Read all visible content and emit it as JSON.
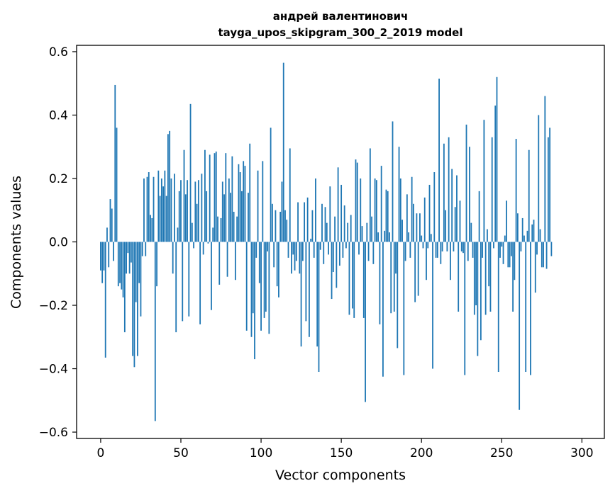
{
  "chart_data": {
    "type": "bar",
    "title": "андрей валентинович",
    "subtitle": "tayga_upos_skipgram_300_2_2019 model",
    "xlabel": "Vector components",
    "ylabel": "Components values",
    "xlim": [
      -15,
      314
    ],
    "ylim": [
      -0.62,
      0.62
    ],
    "xticks": [
      0,
      50,
      100,
      150,
      200,
      250,
      300
    ],
    "xtick_labels": [
      "0",
      "50",
      "100",
      "150",
      "200",
      "250",
      "300"
    ],
    "yticks": [
      -0.6,
      -0.4,
      -0.2,
      0.0,
      0.2,
      0.4,
      0.6
    ],
    "ytick_labels": [
      "−0.6",
      "−0.4",
      "−0.2",
      "0.0",
      "0.2",
      "0.4",
      "0.6"
    ],
    "grid": false,
    "bar_color": "#1f77b4",
    "values": [
      -0.09,
      -0.13,
      -0.09,
      -0.365,
      0.045,
      -0.08,
      0.135,
      0.105,
      -0.06,
      0.495,
      0.36,
      -0.14,
      -0.13,
      -0.15,
      -0.175,
      -0.285,
      -0.1,
      -0.035,
      -0.1,
      -0.065,
      -0.36,
      -0.395,
      -0.19,
      -0.36,
      -0.13,
      -0.235,
      -0.045,
      0.2,
      -0.045,
      0.205,
      0.22,
      0.085,
      0.075,
      0.205,
      -0.565,
      -0.14,
      0.225,
      0.145,
      0.2,
      0.175,
      0.225,
      0.145,
      0.34,
      0.35,
      0.2,
      -0.1,
      0.215,
      -0.285,
      0.045,
      0.16,
      0.195,
      -0.25,
      0.29,
      0.15,
      0.195,
      -0.235,
      0.435,
      0.06,
      -0.02,
      0.19,
      0.12,
      0.195,
      -0.26,
      0.215,
      -0.04,
      0.29,
      0.16,
      -0.005,
      0.275,
      -0.215,
      0.045,
      0.28,
      0.285,
      0.08,
      -0.135,
      0.075,
      0.19,
      0.15,
      0.28,
      -0.11,
      0.2,
      0.155,
      0.27,
      0.095,
      -0.12,
      0.08,
      0.245,
      0.22,
      0.16,
      0.255,
      0.24,
      -0.28,
      0.155,
      0.31,
      -0.3,
      -0.225,
      -0.37,
      -0.05,
      0.225,
      -0.13,
      -0.28,
      0.255,
      -0.24,
      -0.22,
      -0.03,
      -0.29,
      0.36,
      0.12,
      -0.08,
      0.1,
      -0.14,
      -0.175,
      0.095,
      0.19,
      0.565,
      0.1,
      0.07,
      -0.05,
      0.295,
      -0.1,
      -0.04,
      -0.09,
      -0.06,
      0.125,
      -0.1,
      -0.33,
      -0.06,
      0.125,
      -0.25,
      0.14,
      -0.3,
      0.01,
      0.1,
      -0.05,
      0.2,
      -0.33,
      -0.41,
      -0.025,
      0.12,
      -0.07,
      0.11,
      0.06,
      -0.04,
      0.175,
      -0.18,
      -0.095,
      0.08,
      -0.145,
      0.235,
      -0.075,
      0.18,
      -0.05,
      0.115,
      -0.02,
      0.06,
      -0.23,
      0.085,
      -0.21,
      -0.24,
      0.26,
      0.25,
      -0.04,
      0.2,
      0.05,
      -0.24,
      -0.505,
      0.06,
      -0.06,
      0.295,
      0.08,
      -0.07,
      0.2,
      0.195,
      0.03,
      -0.26,
      0.24,
      -0.425,
      0.035,
      0.165,
      0.16,
      0.03,
      -0.225,
      0.38,
      -0.22,
      -0.1,
      -0.335,
      0.3,
      0.2,
      0.07,
      -0.42,
      -0.06,
      0.15,
      0.03,
      -0.05,
      0.205,
      0.12,
      -0.19,
      0.09,
      -0.17,
      0.09,
      0.02,
      -0.02,
      0.14,
      -0.12,
      -0.02,
      0.18,
      0.025,
      -0.4,
      0.22,
      -0.05,
      -0.05,
      0.515,
      -0.07,
      -0.03,
      0.31,
      0.1,
      -0.03,
      0.33,
      -0.12,
      0.23,
      -0.03,
      0.11,
      0.21,
      -0.22,
      0.13,
      -0.03,
      -0.035,
      -0.42,
      0.37,
      -0.06,
      0.3,
      0.06,
      -0.05,
      -0.23,
      -0.2,
      -0.36,
      0.16,
      -0.31,
      -0.05,
      0.385,
      -0.23,
      0.04,
      -0.14,
      -0.22,
      0.33,
      -0.02,
      0.43,
      0.52,
      -0.41,
      -0.05,
      -0.015,
      -0.07,
      0.02,
      0.13,
      -0.08,
      -0.08,
      -0.045,
      -0.22,
      -0.12,
      0.325,
      0.09,
      -0.53,
      -0.03,
      0.075,
      0.02,
      -0.41,
      0.035,
      0.29,
      -0.42,
      0.055,
      0.07,
      -0.16,
      -0.04,
      0.4,
      0.04,
      -0.08,
      -0.08,
      0.46,
      -0.085,
      0.33,
      0.36,
      -0.045
    ]
  }
}
